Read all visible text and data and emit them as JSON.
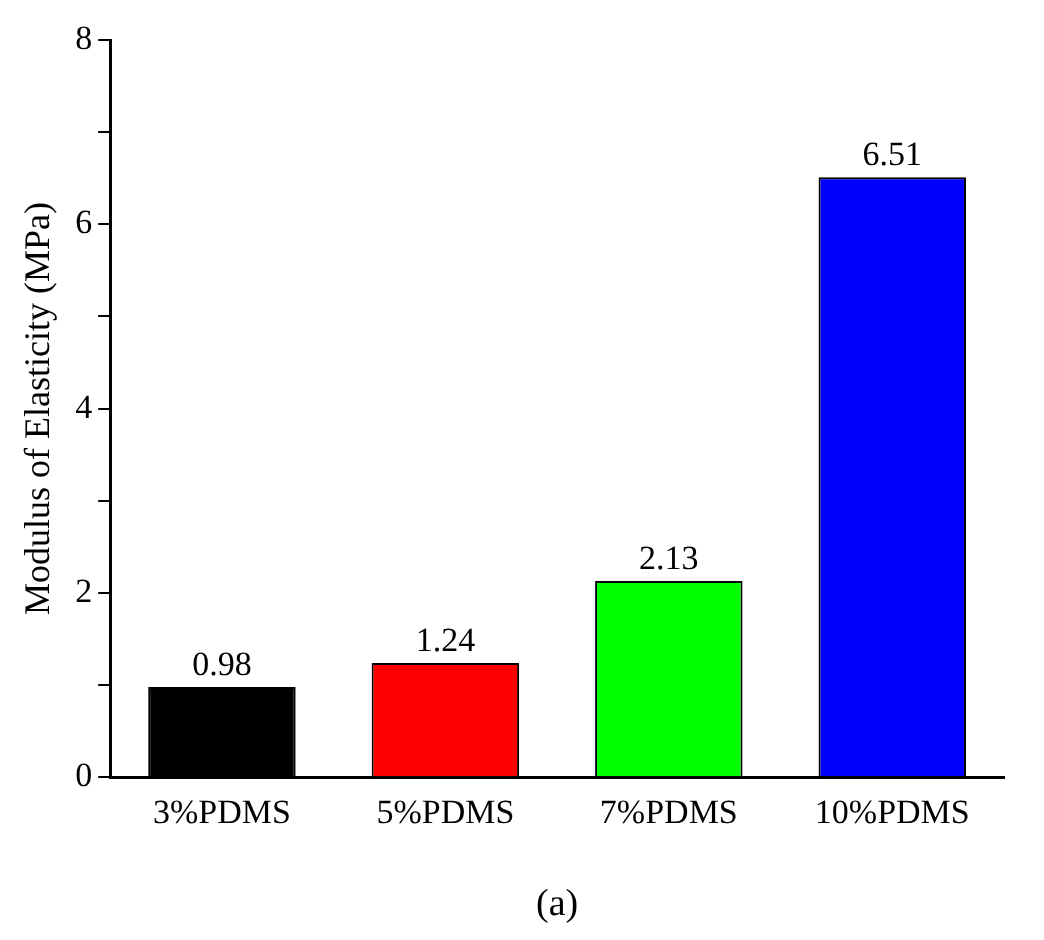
{
  "chart_data": {
    "type": "bar",
    "ylabel": "Modulus of Elasticity (MPa)",
    "categories": [
      "3%PDMS",
      "5%PDMS",
      "7%PDMS",
      "10%PDMS"
    ],
    "values": [
      0.98,
      1.24,
      2.13,
      6.51
    ],
    "colors": [
      "#000000",
      "#ff0000",
      "#00ff00",
      "#0000ff"
    ],
    "ylim": [
      0,
      8
    ],
    "yticks": [
      0,
      {
        "value": 1,
        "label": null
      },
      2,
      {
        "value": 3,
        "label": null
      },
      4,
      {
        "value": 5,
        "label": null
      },
      6,
      {
        "value": 7,
        "label": null
      },
      8
    ],
    "data_labels": true,
    "grid": false,
    "legend": false,
    "annotations": [
      "(a)"
    ]
  }
}
